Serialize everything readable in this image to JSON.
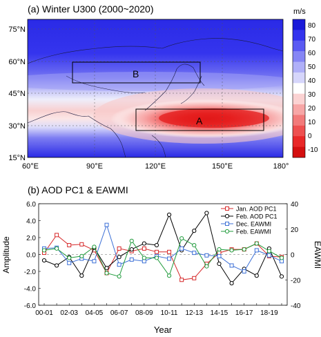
{
  "colors": {
    "colorbar": [
      "#1a1ad9",
      "#3434ee",
      "#5a5af3",
      "#8686f5",
      "#b0b0f8",
      "#d6d6fb",
      "#ffffff",
      "#fbd2d2",
      "#f7a6a6",
      "#f27a7a",
      "#ee5050",
      "#e92828",
      "#d40f0f"
    ],
    "jan_aod": "#d62728",
    "feb_aod": "#000000",
    "dec_eawmi": "#3b6fd6",
    "feb_eawmi": "#1e9a3a"
  },
  "map": {
    "title": "(a) Winter U300 (2000~2020)",
    "unit": "m/s",
    "lat_labels": [
      "75°N",
      "60°N",
      "45°N",
      "30°N",
      "15°N"
    ],
    "lon_labels": [
      "60°E",
      "90°E",
      "120°E",
      "150°E",
      "180°"
    ],
    "colorbar_ticks": [
      "80",
      "70",
      "60",
      "50",
      "40",
      "30",
      "20",
      "10",
      "0",
      "-10"
    ],
    "box_b_label": "B",
    "box_a_label": "A"
  },
  "chart_data": {
    "type": "line",
    "title": "(b) AOD PC1 & EAWMI",
    "xlabel": "Year",
    "ylabel": "Amplitude",
    "ylabel_right": "EAWMI",
    "categories": [
      "00-01",
      "01-02",
      "02-03",
      "03-04",
      "04-05",
      "05-06",
      "06-07",
      "07-08",
      "08-09",
      "09-10",
      "10-11",
      "11-12",
      "12-13",
      "13-14",
      "14-15",
      "15-16",
      "16-17",
      "17-18",
      "18-19",
      "19-20"
    ],
    "xtick_labels": [
      "00-01",
      "02-03",
      "04-05",
      "06-07",
      "08-09",
      "10-11",
      "12-13",
      "14-15",
      "16-17",
      "18-19"
    ],
    "yticks_left": [
      "6.0",
      "4.0",
      "2.0",
      "0.0",
      "-2.0",
      "-4.0",
      "-6.0"
    ],
    "yticks_right": [
      "40",
      "20",
      "0",
      "-20",
      "-40"
    ],
    "ylim": [
      -6,
      6
    ],
    "ylim_right": [
      -40,
      40
    ],
    "series": [
      {
        "name": "Jan. AOD PC1",
        "axis": "left",
        "marker": "square",
        "values": [
          0.2,
          2.3,
          1.1,
          1.2,
          0.5,
          -2.2,
          0.7,
          0.4,
          0.7,
          0.3,
          0.3,
          -3.0,
          -2.8,
          -1.1,
          0.2,
          0.6,
          0.6,
          1.3,
          -0.2,
          -0.3
        ]
      },
      {
        "name": "Feb. AOD PC1",
        "axis": "left",
        "marker": "circle",
        "values": [
          -0.7,
          -1.3,
          -0.3,
          -2.5,
          0.8,
          -1.6,
          -0.3,
          0.6,
          1.3,
          1.1,
          4.7,
          0.5,
          2.8,
          4.9,
          -1.1,
          -3.4,
          -1.7,
          -2.5,
          0.7,
          -2.6
        ]
      },
      {
        "name": "Dec. EAWMI",
        "axis": "right",
        "marker": "square",
        "values": [
          4.7,
          5.3,
          -6.7,
          -3.3,
          -5.3,
          23.3,
          -8.0,
          -4.0,
          -5.3,
          -1.3,
          -3.3,
          4.7,
          1.3,
          -0.7,
          -1.3,
          -8.7,
          -13.3,
          3.3,
          -0.7,
          -5.3
        ]
      },
      {
        "name": "Feb. EAWMI",
        "axis": "right",
        "marker": "circle",
        "values": [
          3.3,
          4.7,
          -2.7,
          -1.3,
          6.0,
          -14.7,
          -17.3,
          10.7,
          -2.7,
          -2.7,
          -16.7,
          12.7,
          7.3,
          -9.3,
          4.0,
          3.3,
          4.0,
          8.7,
          2.7,
          -2.7
        ]
      }
    ]
  }
}
